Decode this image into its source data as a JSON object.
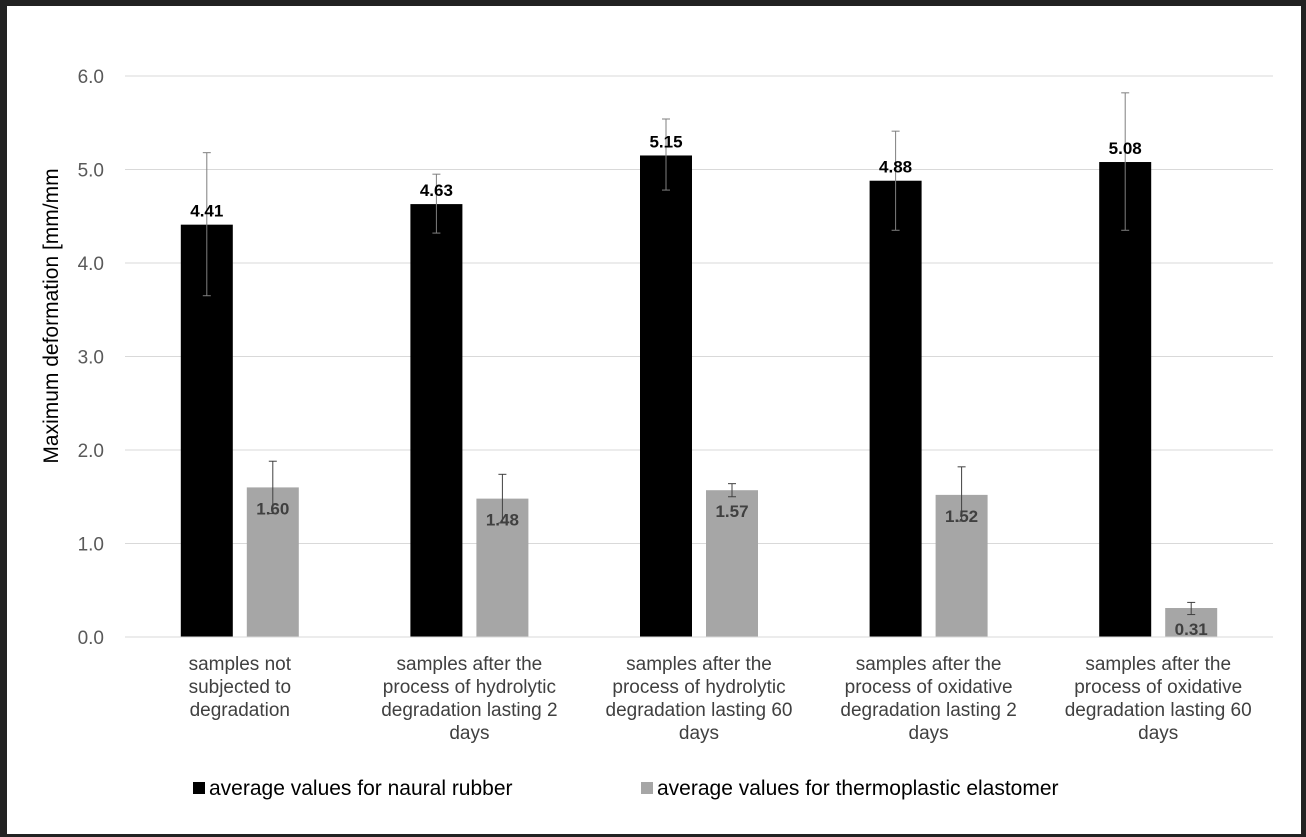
{
  "chart_data": {
    "type": "bar",
    "ylabel": "Maximum  deformation  [mm/mm",
    "ylim": [
      0,
      6
    ],
    "y_ticks": [
      "0.0",
      "1.0",
      "2.0",
      "3.0",
      "4.0",
      "5.0",
      "6.0"
    ],
    "grid": true,
    "legend_position": "bottom",
    "categories": [
      [
        "samples not",
        "subjected to",
        "degradation"
      ],
      [
        "samples after the",
        "process of hydrolytic",
        "degradation lasting 2",
        "days"
      ],
      [
        "samples after the",
        "process of hydrolytic",
        "degradation lasting 60",
        "days"
      ],
      [
        "samples after the",
        "process of oxidative",
        "degradation lasting 2",
        "days"
      ],
      [
        "samples after the",
        "process of oxidative",
        "degradation lasting 60",
        "days"
      ]
    ],
    "series": [
      {
        "name": "average values for naural rubber",
        "color": "#000000",
        "values": [
          4.41,
          4.63,
          5.15,
          4.88,
          5.08
        ],
        "labels": [
          "4.41",
          "4.63",
          "5.15",
          "4.88",
          "5.08"
        ],
        "error_low": [
          3.65,
          4.32,
          4.78,
          4.35,
          4.35
        ],
        "error_high": [
          5.18,
          4.95,
          5.54,
          5.41,
          5.82
        ]
      },
      {
        "name": "average values for thermoplastic elastomer",
        "color": "#a6a6a6",
        "values": [
          1.6,
          1.48,
          1.57,
          1.52,
          0.31
        ],
        "labels": [
          "1.60",
          "1.48",
          "1.57",
          "1.52",
          "0.31"
        ],
        "error_low": [
          1.32,
          1.22,
          1.5,
          1.24,
          0.24
        ],
        "error_high": [
          1.88,
          1.74,
          1.64,
          1.82,
          0.37
        ]
      }
    ]
  }
}
